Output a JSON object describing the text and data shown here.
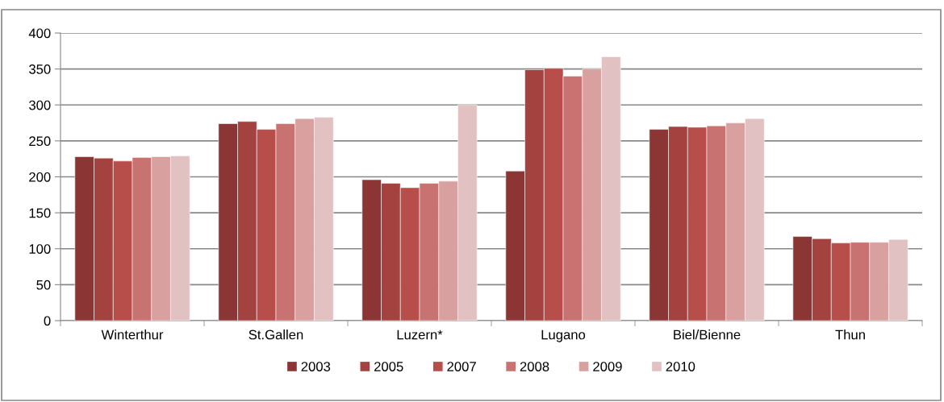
{
  "chart_data": {
    "type": "bar",
    "categories": [
      "Winterthur",
      "St.Gallen",
      "Luzern*",
      "Lugano",
      "Biel/Bienne",
      "Thun"
    ],
    "series": [
      {
        "name": "2003",
        "color": "#8b3535",
        "values": [
          228,
          274,
          196,
          208,
          266,
          117
        ]
      },
      {
        "name": "2005",
        "color": "#a44240",
        "values": [
          226,
          277,
          191,
          349,
          270,
          114
        ]
      },
      {
        "name": "2007",
        "color": "#b74e4a",
        "values": [
          222,
          266,
          185,
          351,
          269,
          108
        ]
      },
      {
        "name": "2008",
        "color": "#c87371",
        "values": [
          227,
          274,
          191,
          340,
          271,
          109
        ]
      },
      {
        "name": "2009",
        "color": "#d8a1a0",
        "values": [
          228,
          281,
          194,
          350,
          275,
          109
        ]
      },
      {
        "name": "2010",
        "color": "#e1c1c1",
        "values": [
          229,
          283,
          300,
          367,
          281,
          113
        ]
      }
    ],
    "ylim": [
      0,
      400
    ],
    "yticks": [
      0,
      50,
      100,
      150,
      200,
      250,
      300,
      350,
      400
    ],
    "grid": "y",
    "legend": "bottom"
  }
}
